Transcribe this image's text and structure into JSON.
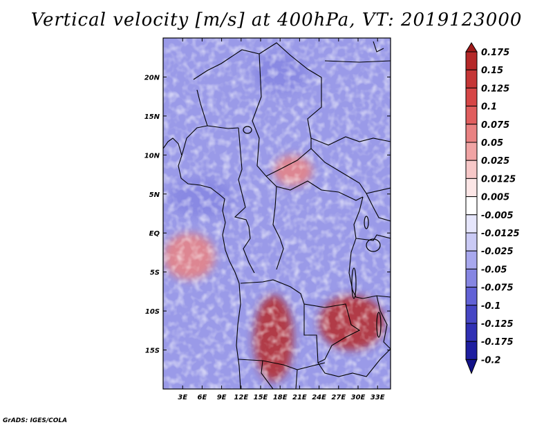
{
  "chart_data": {
    "type": "heatmap",
    "title": "Vertical velocity [m/s] at 400hPa, VT: 2019123000",
    "variable": "Vertical velocity",
    "units": "m/s",
    "level": "400hPa",
    "valid_time": "2019123000",
    "credit": "GrADS: IGES/COLA",
    "x_axis": {
      "range": [
        0,
        35
      ],
      "tick_values": [
        3,
        6,
        9,
        12,
        15,
        18,
        21,
        24,
        27,
        30,
        33
      ],
      "tick_labels": [
        "3E",
        "6E",
        "9E",
        "12E",
        "15E",
        "18E",
        "21E",
        "24E",
        "27E",
        "30E",
        "33E"
      ]
    },
    "y_axis": {
      "range": [
        -20,
        25
      ],
      "tick_values": [
        20,
        15,
        10,
        5,
        0,
        -5,
        -10,
        -15
      ],
      "tick_labels": [
        "20N",
        "15N",
        "10N",
        "5N",
        "EQ",
        "5S",
        "10S",
        "15S"
      ]
    },
    "colorbar": {
      "levels": [
        "0.175",
        "0.15",
        "0.125",
        "0.1",
        "0.075",
        "0.05",
        "0.025",
        "0.0125",
        "0.005",
        "-0.005",
        "-0.0125",
        "-0.025",
        "-0.05",
        "-0.075",
        "-0.1",
        "-0.125",
        "-0.175",
        "-0.2"
      ],
      "colors": [
        "#a01a1a",
        "#b52828",
        "#c53636",
        "#d64646",
        "#e05e5e",
        "#e98282",
        "#f0a4a4",
        "#f7c8c8",
        "#fce6e6",
        "#ffffff",
        "#e6e6fc",
        "#cacaf5",
        "#a8a8ee",
        "#8686e2",
        "#6262d6",
        "#4646c4",
        "#3030b4",
        "#1e1ea0",
        "#121288"
      ]
    },
    "features": [
      {
        "name": "strong upward motion",
        "sign": "positive",
        "lon": [
          14,
          20
        ],
        "lat": [
          -19,
          -8
        ]
      },
      {
        "name": "strong upward motion",
        "sign": "positive",
        "lon": [
          24,
          34
        ],
        "lat": [
          -15,
          -8
        ]
      },
      {
        "name": "upward motion",
        "sign": "positive",
        "lon": [
          17,
          23
        ],
        "lat": [
          6,
          10
        ]
      },
      {
        "name": "upward motion",
        "sign": "positive",
        "lon": [
          0,
          8
        ],
        "lat": [
          -6,
          0
        ]
      },
      {
        "name": "downward motion",
        "sign": "negative",
        "lon": [
          1,
          11
        ],
        "lat": [
          2,
          7
        ]
      },
      {
        "name": "downward motion",
        "sign": "negative",
        "lon": [
          14,
          22
        ],
        "lat": [
          18,
          23
        ]
      }
    ]
  }
}
